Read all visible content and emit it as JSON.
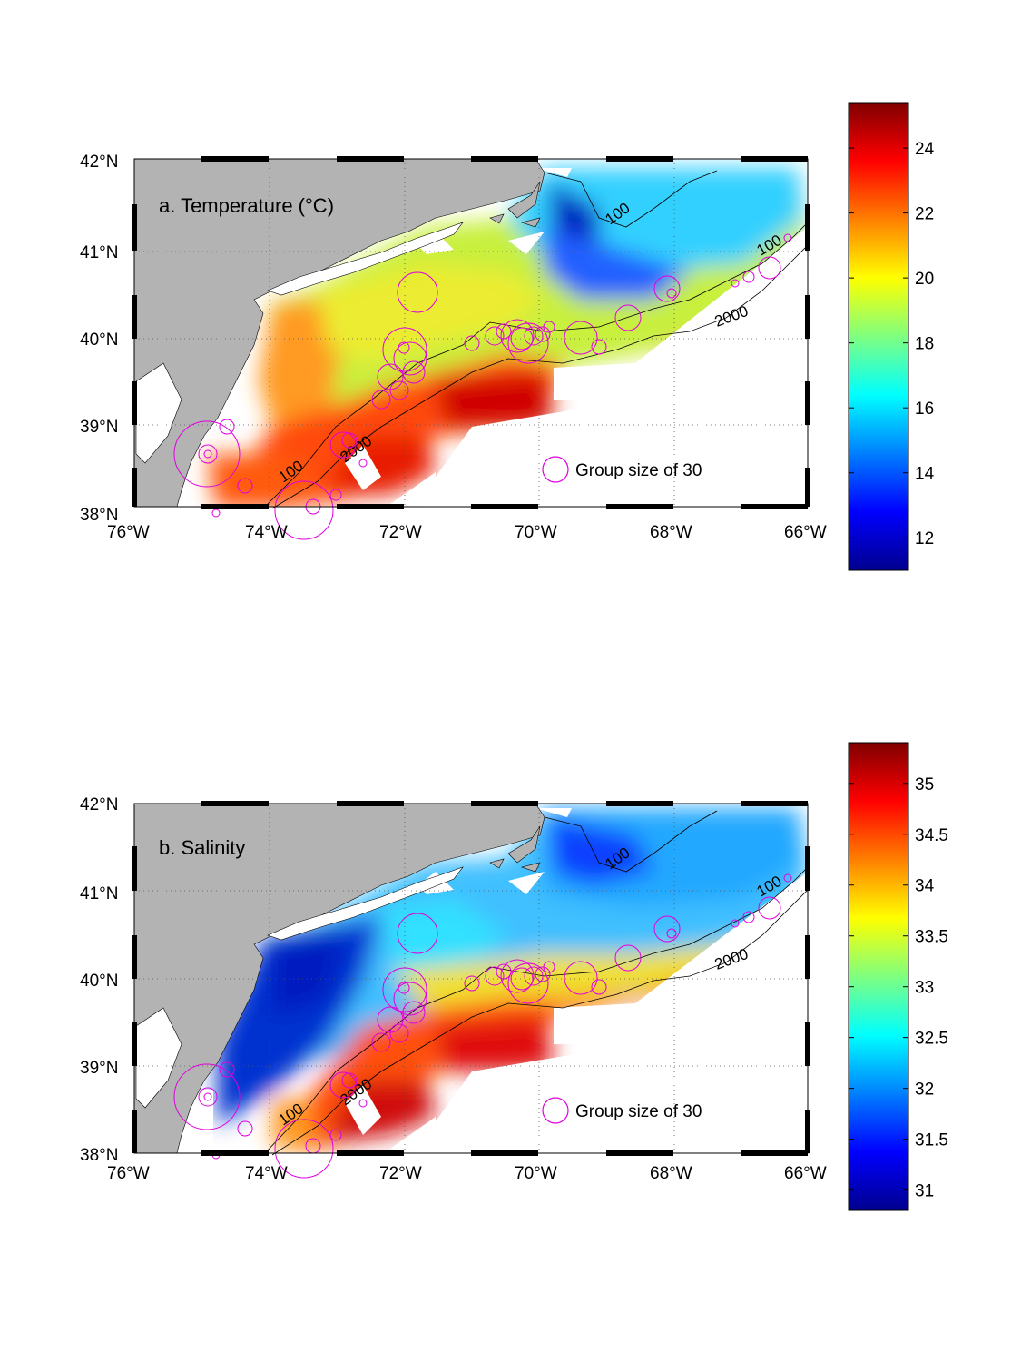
{
  "panels": [
    {
      "title": "a. Temperature (°C)",
      "colorbar": {
        "min": 11,
        "max": 25.4,
        "ticks": [
          "12",
          "14",
          "16",
          "18",
          "20",
          "22",
          "24"
        ],
        "tickValues": [
          12,
          14,
          16,
          18,
          20,
          22,
          24
        ]
      },
      "legend": "Group size of 30",
      "contours": [
        "100",
        "2000",
        "100",
        "2000"
      ]
    },
    {
      "title": "b. Salinity",
      "colorbar": {
        "min": 30.8,
        "max": 35.4,
        "ticks": [
          "31",
          "31.5",
          "32",
          "32.5",
          "33",
          "33.5",
          "34",
          "34.5",
          "35"
        ],
        "tickValues": [
          31,
          31.5,
          32,
          32.5,
          33,
          33.5,
          34,
          34.5,
          35
        ]
      },
      "legend": "Group size of 30",
      "contours": [
        "100",
        "2000",
        "100",
        "2000"
      ]
    }
  ],
  "axes": {
    "lon_labels": [
      "76°W",
      "74°W",
      "72°W",
      "70°W",
      "68°W",
      "66°W"
    ],
    "lat_labels": [
      "42°N",
      "41°N",
      "40°N",
      "39°N",
      "38°N"
    ]
  },
  "colors": {
    "land": "#b3b3b3",
    "circles": "#e000e0",
    "frame": "#000000"
  },
  "chart_data": [
    {
      "type": "heatmap",
      "title": "a. Temperature (°C)",
      "xlim": [
        -76,
        -66
      ],
      "ylim": [
        38,
        42
      ],
      "colorbar_range": [
        11,
        25.4
      ],
      "values_by_region": {
        "northeast_gulf_of_maine": 16,
        "slope_sea": 24,
        "shelf_mid": 19
      }
    },
    {
      "type": "heatmap",
      "title": "b. Salinity",
      "xlim": [
        -76,
        -66
      ],
      "ylim": [
        38,
        42
      ],
      "colorbar_range": [
        30.8,
        35.4
      ],
      "values_by_region": {
        "inshore_shelf": 31.3,
        "slope_sea": 34.8,
        "shelf_mid": 32.5
      }
    }
  ]
}
